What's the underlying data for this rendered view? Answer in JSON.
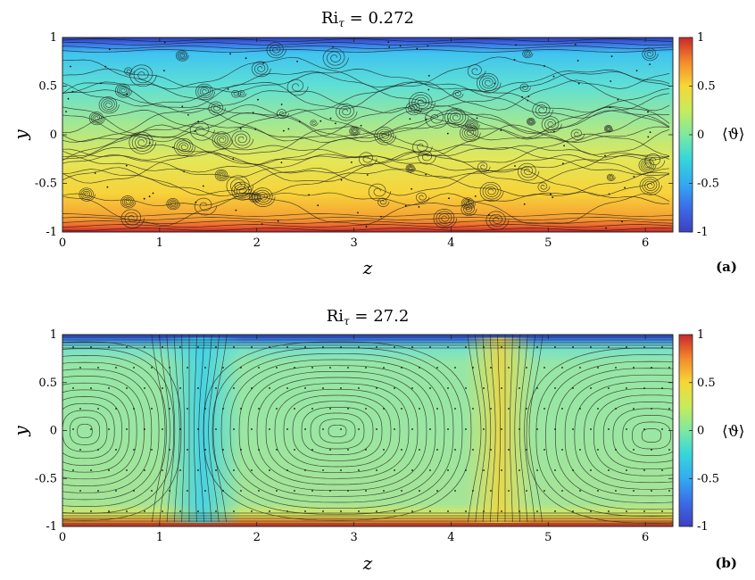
{
  "chart_data": [
    {
      "type": "heatmap",
      "panel_label": "(a)",
      "title_base": "Ri",
      "title_sub": "τ",
      "title_rest": " = 0.272",
      "xlabel": "z",
      "ylabel": "y",
      "xlim": [
        0,
        6.2832
      ],
      "ylim": [
        -1,
        1
      ],
      "xticks": [
        "0",
        "1",
        "2",
        "3",
        "4",
        "5",
        "6"
      ],
      "yticks": [
        "1",
        "0.5",
        "0",
        "-0.5",
        "-1"
      ],
      "colorbar": {
        "label": "⟨ϑ⟩",
        "range": [
          -1,
          1
        ],
        "ticks": [
          "1",
          "0.5",
          "0",
          "-0.5",
          "-1"
        ],
        "colormap": "jet"
      },
      "field": "mean temperature decreasing linearly from 1 at y=-1 to -1 at y=1 with thin boundary layers",
      "streamlines": "many small-scale vortices across the channel"
    },
    {
      "type": "heatmap",
      "panel_label": "(b)",
      "title_base": "Ri",
      "title_sub": "τ",
      "title_rest": " = 27.2",
      "xlabel": "z",
      "ylabel": "y",
      "xlim": [
        0,
        6.2832
      ],
      "ylim": [
        -1,
        1
      ],
      "xticks": [
        "0",
        "1",
        "2",
        "3",
        "4",
        "5",
        "6"
      ],
      "yticks": [
        "1",
        "0.5",
        "0",
        "-0.5",
        "-1"
      ],
      "colorbar": {
        "label": "⟨ϑ⟩",
        "range": [
          -1,
          1
        ],
        "ticks": [
          "1",
          "0.5",
          "0",
          "-0.5",
          "-1"
        ],
        "colormap": "jet"
      },
      "field": "well-mixed core near 0.2 with sharp boundary layers; cool plume near z=1.4, warm plume near z=4.6",
      "streamlines": "large counter-rotating rolls centred near z=0.3, z=2.8 and z=6.0"
    }
  ]
}
